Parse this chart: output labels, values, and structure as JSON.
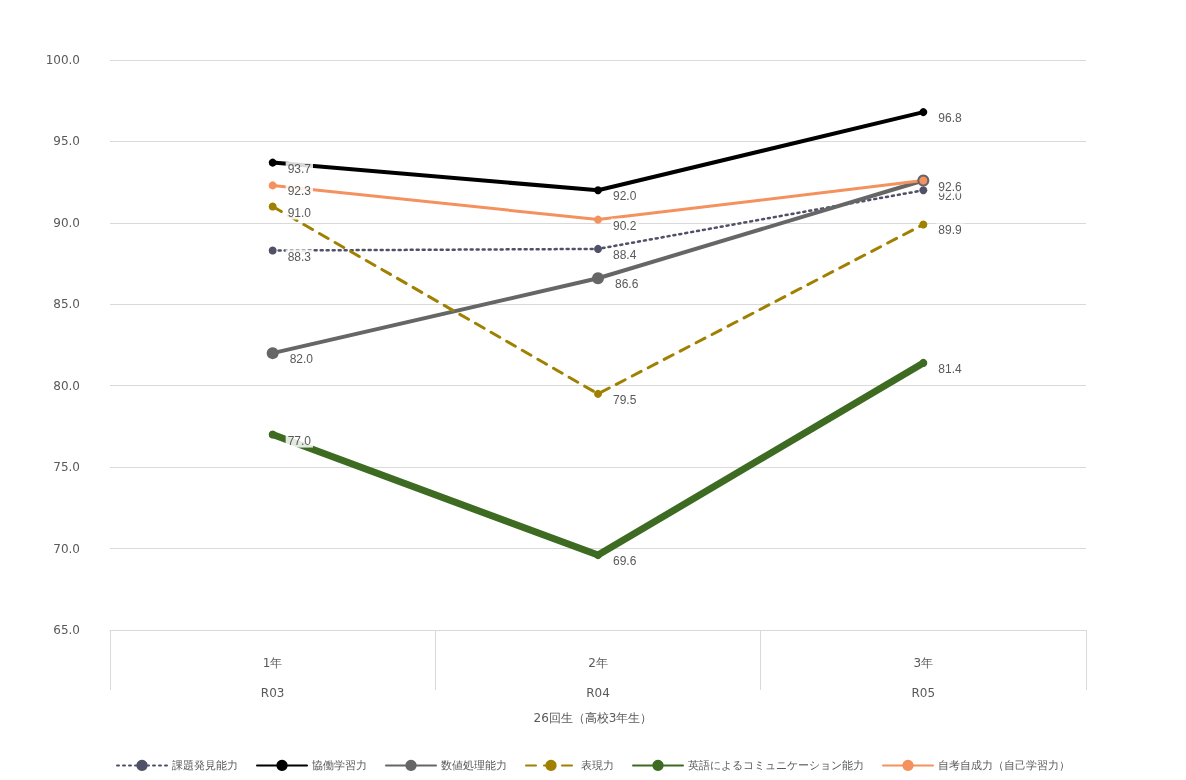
{
  "chart_data": {
    "type": "line",
    "categories": [
      "1年\nR03",
      "2年\nR04",
      "3年\nR05"
    ],
    "annotations": [
      "26回生（高校3年生）"
    ],
    "ylim": [
      65,
      100
    ],
    "yticks": [
      {
        "value": 65,
        "label": "65.0"
      },
      {
        "value": 70,
        "label": "70.0"
      },
      {
        "value": 75,
        "label": "75.0"
      },
      {
        "value": 80,
        "label": "80.0"
      },
      {
        "value": 85,
        "label": "85.0"
      },
      {
        "value": 90,
        "label": "90.0"
      },
      {
        "value": 95,
        "label": "95.0"
      },
      {
        "value": 100,
        "label": "100.0"
      }
    ],
    "grid": "y",
    "legend": "bottom",
    "marker": "circle",
    "series": [
      {
        "name": "課題発見能力",
        "color": "#505068",
        "line_style": "dotted",
        "values": [
          88.3,
          88.4,
          92.0
        ],
        "value_labels": [
          "88.3",
          "88.4",
          "92.0"
        ]
      },
      {
        "name": "協働学習力",
        "color": "#000000",
        "line_style": "solid",
        "values": [
          93.7,
          92.0,
          96.8
        ],
        "value_labels": [
          "93.7",
          "92.0",
          "96.8"
        ]
      },
      {
        "name": "数値処理能力",
        "color": "#666666",
        "line_style": "solid",
        "values": [
          82.0,
          86.6,
          92.6
        ],
        "value_labels": [
          "82.0",
          "86.6",
          null
        ]
      },
      {
        "name": "表現力",
        "color": "#a08000",
        "line_style": "dashed",
        "values": [
          91.0,
          79.5,
          89.9
        ],
        "value_labels": [
          "91.0",
          "79.5",
          "89.9"
        ]
      },
      {
        "name": "英語によるコミュニケーション能力",
        "color": "#3e6b22",
        "line_style": "solid",
        "values": [
          77.0,
          69.6,
          81.4
        ],
        "value_labels": [
          "77.0",
          "69.6",
          "81.4"
        ]
      },
      {
        "name": "自考自成力（自己学習力）",
        "color": "#f4915e",
        "line_style": "solid",
        "values": [
          92.3,
          90.2,
          92.6
        ],
        "value_labels": [
          "92.3",
          "90.2",
          "92.6"
        ]
      }
    ]
  }
}
